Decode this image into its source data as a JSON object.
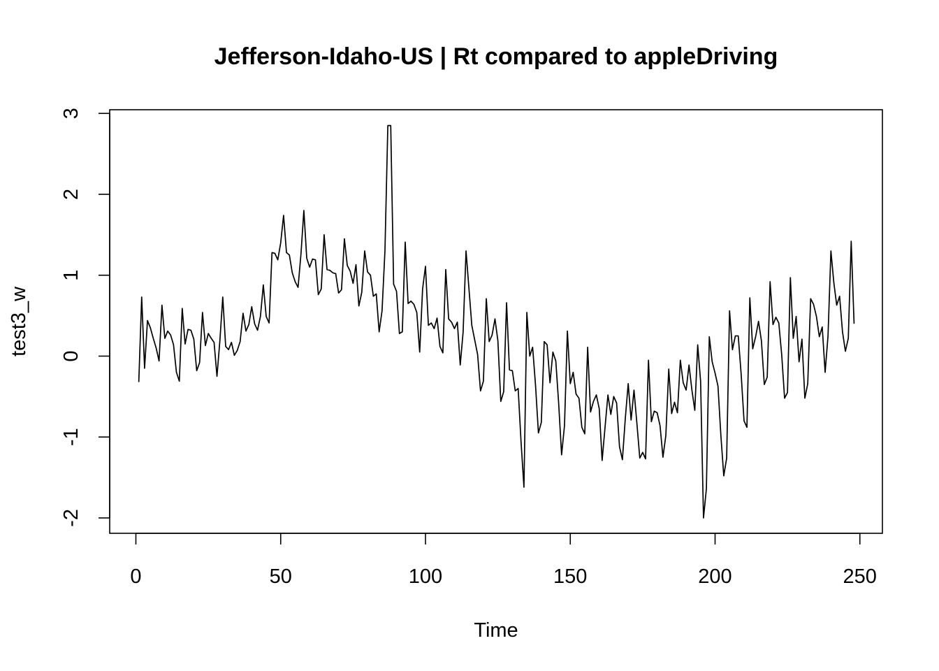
{
  "chart_data": {
    "type": "line",
    "title": "Jefferson-Idaho-US | Rt compared to appleDriving",
    "xlabel": "Time",
    "ylabel": "test3_w",
    "xlim": [
      1,
      248
    ],
    "ylim": [
      -2,
      2.85
    ],
    "x_ticks": [
      0,
      50,
      100,
      150,
      200,
      250
    ],
    "y_ticks": [
      -2,
      -1,
      0,
      1,
      2,
      3
    ],
    "grid": false,
    "legend": "none",
    "series": [
      {
        "color": "#000000",
        "values": [
          -0.32,
          0.73,
          -0.15,
          0.44,
          0.35,
          0.22,
          0.1,
          -0.06,
          0.63,
          0.22,
          0.31,
          0.26,
          0.14,
          -0.2,
          -0.31,
          0.59,
          0.15,
          0.33,
          0.32,
          0.21,
          -0.18,
          -0.08,
          0.54,
          0.13,
          0.28,
          0.22,
          0.17,
          -0.25,
          0.19,
          0.73,
          0.12,
          0.08,
          0.17,
          0.01,
          0.07,
          0.18,
          0.53,
          0.31,
          0.39,
          0.61,
          0.4,
          0.32,
          0.49,
          0.88,
          0.49,
          0.41,
          1.28,
          1.27,
          1.19,
          1.4,
          1.74,
          1.28,
          1.25,
          1.03,
          0.92,
          0.85,
          1.26,
          1.8,
          1.21,
          1.1,
          1.2,
          1.19,
          0.76,
          0.83,
          1.5,
          1.07,
          1.06,
          1.03,
          1.02,
          0.78,
          0.82,
          1.45,
          1.12,
          1.05,
          0.9,
          1.13,
          0.62,
          0.79,
          1.3,
          1.04,
          1.0,
          0.74,
          0.77,
          0.3,
          0.56,
          1.3,
          2.85,
          2.85,
          0.89,
          0.8,
          0.28,
          0.3,
          1.41,
          0.65,
          0.68,
          0.64,
          0.54,
          0.05,
          0.83,
          1.11,
          0.38,
          0.41,
          0.34,
          0.47,
          0.12,
          0.04,
          1.07,
          0.46,
          0.42,
          0.34,
          0.42,
          -0.11,
          0.3,
          1.3,
          0.84,
          0.38,
          0.2,
          0.02,
          -0.43,
          -0.31,
          0.71,
          0.18,
          0.26,
          0.46,
          0.19,
          -0.56,
          -0.44,
          0.66,
          -0.17,
          -0.18,
          -0.43,
          -0.4,
          -1.06,
          -1.62,
          0.54,
          0.0,
          0.11,
          -0.36,
          -0.95,
          -0.82,
          0.18,
          0.14,
          -0.33,
          0.05,
          -0.06,
          -0.59,
          -1.22,
          -0.86,
          0.31,
          -0.34,
          -0.2,
          -0.47,
          -0.52,
          -0.88,
          -0.96,
          0.11,
          -0.69,
          -0.56,
          -0.48,
          -0.65,
          -1.29,
          -0.88,
          -0.48,
          -0.72,
          -0.5,
          -0.58,
          -1.12,
          -1.28,
          -0.77,
          -0.34,
          -0.79,
          -0.42,
          -0.83,
          -1.26,
          -1.19,
          -1.27,
          -0.05,
          -0.81,
          -0.68,
          -0.7,
          -0.86,
          -1.25,
          -0.98,
          -0.16,
          -0.71,
          -0.57,
          -0.7,
          -0.05,
          -0.33,
          -0.42,
          -0.11,
          -0.42,
          -0.67,
          0.14,
          -0.31,
          -2.0,
          -1.64,
          0.24,
          -0.07,
          -0.21,
          -0.37,
          -0.98,
          -1.48,
          -1.26,
          0.56,
          0.08,
          0.25,
          0.25,
          -0.22,
          -0.8,
          -0.88,
          0.72,
          0.09,
          0.24,
          0.43,
          0.19,
          -0.35,
          -0.26,
          0.92,
          0.39,
          0.48,
          0.41,
          0.02,
          -0.52,
          -0.45,
          0.97,
          0.22,
          0.49,
          -0.07,
          0.21,
          -0.52,
          -0.34,
          0.71,
          0.64,
          0.49,
          0.24,
          0.36,
          -0.2,
          0.25,
          1.3,
          0.91,
          0.63,
          0.74,
          0.3,
          0.06,
          0.22,
          1.42,
          0.4
        ]
      }
    ]
  }
}
